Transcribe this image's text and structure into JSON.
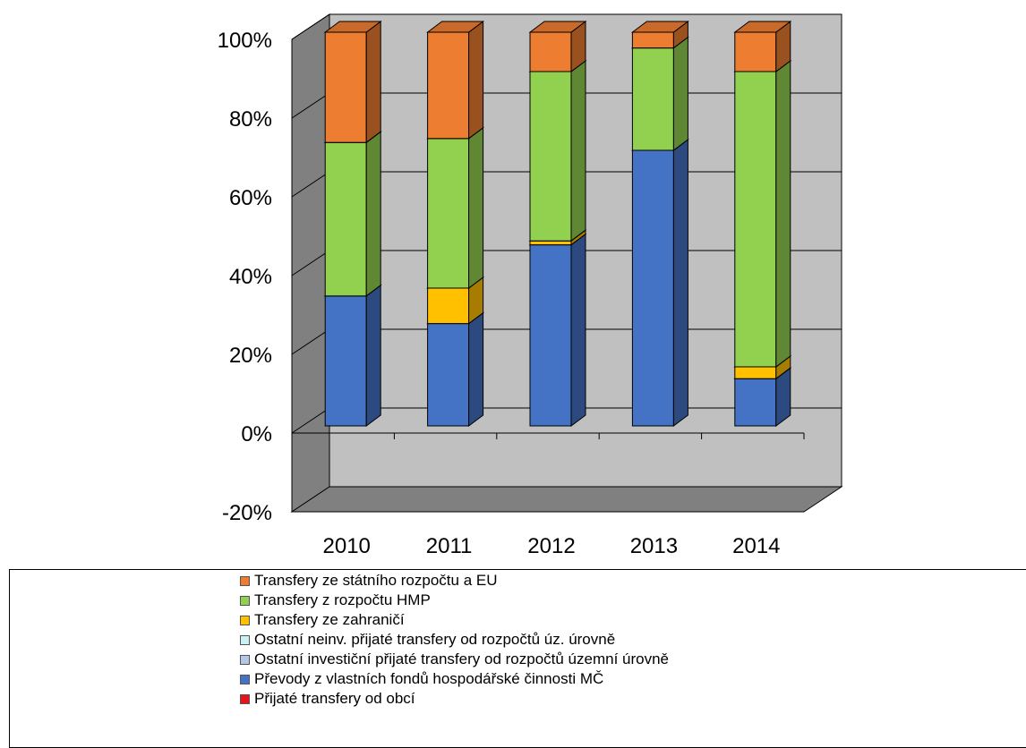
{
  "chart_data": {
    "type": "bar",
    "stacked": true,
    "percent_stacked": true,
    "three_d": true,
    "categories": [
      "2010",
      "2011",
      "2012",
      "2013",
      "2014"
    ],
    "y_ticks": [
      "-20%",
      "0%",
      "20%",
      "40%",
      "60%",
      "80%",
      "100%"
    ],
    "ylim": [
      -20,
      100
    ],
    "grid": true,
    "legend_position": "bottom",
    "series": [
      {
        "name": "Přijaté transfery od obcí",
        "color": "#e8131b",
        "values": [
          0,
          0,
          0,
          0,
          0
        ]
      },
      {
        "name": "Převody z vlastních fondů hospodářské činnosti MČ",
        "color": "#4472c4",
        "values": [
          33,
          26,
          46,
          70,
          12
        ]
      },
      {
        "name": "Ostatní investiční přijaté transfery od rozpočtů územní úrovně",
        "color": "#b4c7e7",
        "values": [
          0,
          0,
          0,
          0,
          0
        ]
      },
      {
        "name": "Ostatní neinv. přijaté transfery od rozpočtů úz. úrovně",
        "color": "#c9f0f5",
        "values": [
          0,
          0,
          0,
          0,
          0
        ]
      },
      {
        "name": "Transfery ze zahraničí",
        "color": "#ffc000",
        "values": [
          0,
          9,
          1,
          0,
          3
        ]
      },
      {
        "name": "Transfery z rozpočtu HMP",
        "color": "#92d050",
        "values": [
          39,
          38,
          43,
          26,
          75
        ]
      },
      {
        "name": "Transfery ze státního rozpočtu a EU",
        "color": "#ed7d31",
        "values": [
          28,
          27,
          10,
          4,
          10
        ]
      }
    ],
    "legend_order": [
      6,
      5,
      4,
      3,
      2,
      1,
      0
    ]
  }
}
